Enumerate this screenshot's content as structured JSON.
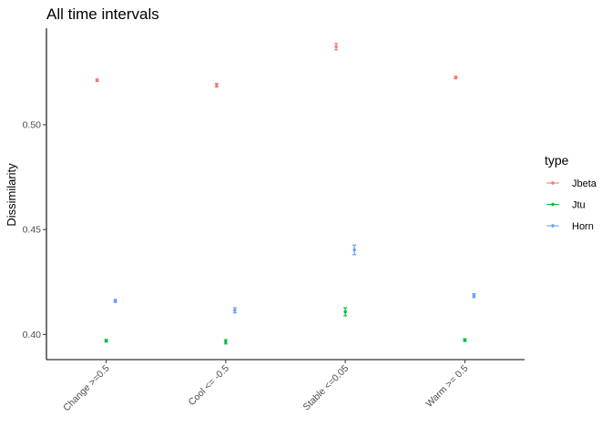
{
  "chart_data": {
    "type": "scatter",
    "title": "All time intervals",
    "xlabel": "",
    "ylabel": "Dissimilarity",
    "categories": [
      "Change >=0.5",
      "Cool <= -0.5",
      "Stable <=0.05",
      "Warm >= 0.5"
    ],
    "yticks": [
      "0.40",
      "0.45",
      "0.50"
    ],
    "ylim": [
      0.388,
      0.546
    ],
    "grid": false,
    "legend": {
      "title": "type",
      "position": "right"
    },
    "series": [
      {
        "name": "Jbeta",
        "color": "#F8766D",
        "values": [
          0.5212,
          0.5188,
          0.5372,
          0.5225
        ],
        "errors": [
          0.0006,
          0.0009,
          0.0015,
          0.0006
        ]
      },
      {
        "name": "Jtu",
        "color": "#00BA38",
        "values": [
          0.397,
          0.3965,
          0.4108,
          0.3973
        ],
        "errors": [
          0.0006,
          0.001,
          0.0019,
          0.0006
        ]
      },
      {
        "name": "Horn",
        "color": "#619CFF",
        "values": [
          0.416,
          0.4115,
          0.4403,
          0.4185
        ],
        "errors": [
          0.0007,
          0.0012,
          0.0023,
          0.0009
        ]
      }
    ]
  }
}
